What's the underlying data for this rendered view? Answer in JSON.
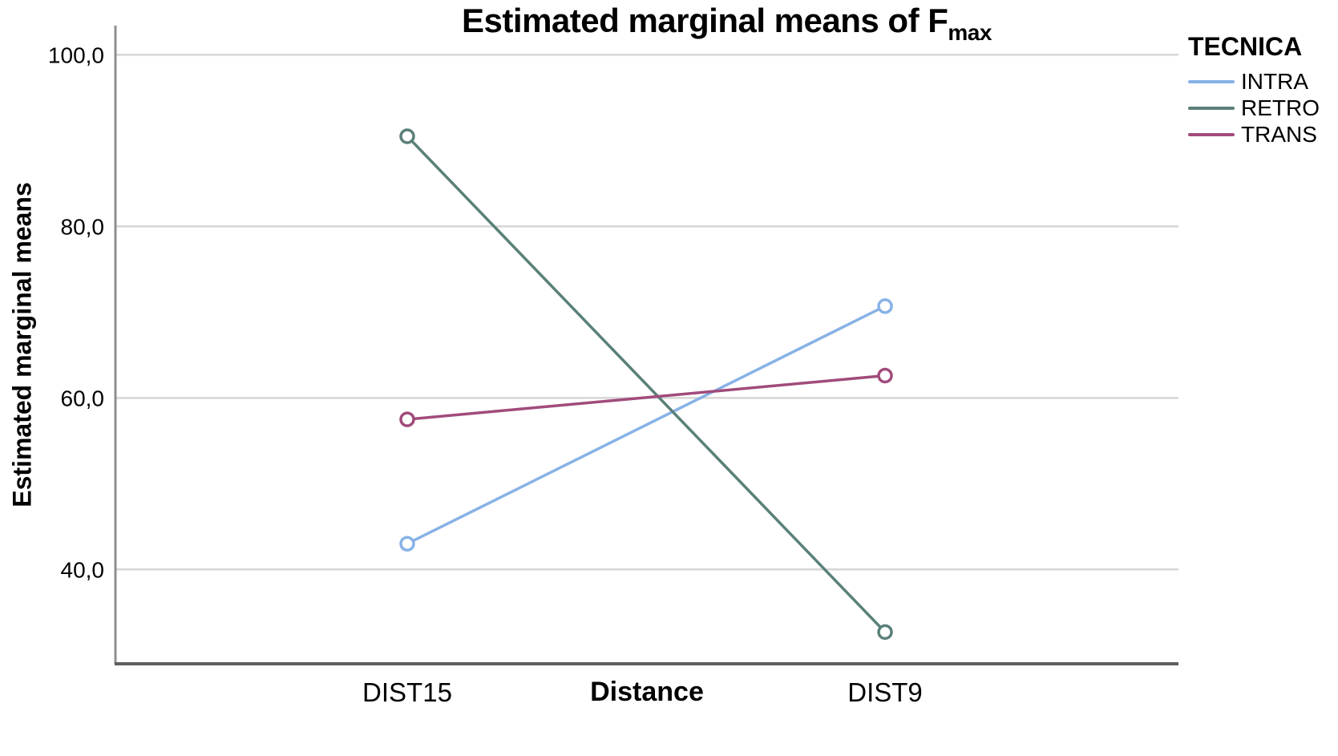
{
  "chart_data": {
    "type": "line",
    "title": "Estimated marginal means of F",
    "title_subscript": "max",
    "xlabel": "Distance",
    "ylabel": "Estimated marginal means",
    "legend_title": "TECNICA",
    "legend_position": "top-right",
    "grid": true,
    "categories": [
      "DIST15",
      "DIST9"
    ],
    "series": [
      {
        "name": "INTRA",
        "color": "#87b2e6",
        "values": [
          43.0,
          70.7
        ]
      },
      {
        "name": "RETRO",
        "color": "#5a8079",
        "values": [
          90.5,
          32.7
        ]
      },
      {
        "name": "TRANS",
        "color": "#a14b7b",
        "values": [
          57.5,
          62.6
        ]
      }
    ],
    "y_ticks": [
      {
        "label": "100,0",
        "value": 100
      },
      {
        "label": "80,0",
        "value": 80
      },
      {
        "label": "60,0",
        "value": 60
      },
      {
        "label": "40,0",
        "value": 40
      }
    ],
    "ylim": [
      29,
      103.4
    ],
    "colors": {
      "gridline": "#d6d6d6",
      "y_axis_line": "#8f8f8f",
      "x_axis_line": "#5f5f5f",
      "text": "#000000"
    }
  }
}
